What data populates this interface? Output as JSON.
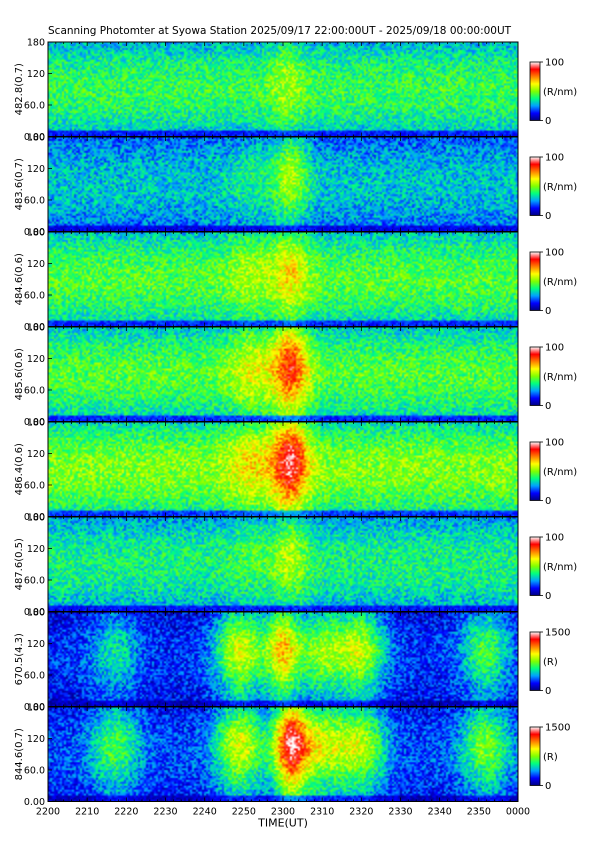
{
  "title": "Scanning Photomter at Syowa Station 2025/09/17 22:00:00UT - 2025/09/18 00:00:00UT",
  "colors": {
    "background": "#ffffff",
    "colormap": [
      "#000080",
      "#0000ff",
      "#00a0ff",
      "#00ff80",
      "#80ff00",
      "#ffff00",
      "#ff8000",
      "#ff0000",
      "#ffffff"
    ]
  },
  "chart_data": {
    "type": "heatmap",
    "xlabel": "TIME(UT)",
    "x_ticks": [
      "2200",
      "2210",
      "2220",
      "2230",
      "2240",
      "2250",
      "2300",
      "2310",
      "2320",
      "2330",
      "2340",
      "2350",
      "0000"
    ],
    "xlim_minutes": [
      0,
      120
    ],
    "y_ticks": [
      "0.00",
      "60.0",
      "120",
      "180"
    ],
    "ylim": [
      0,
      180
    ],
    "panels": [
      {
        "ylabel": "482.8(0.7)",
        "cbar_label": "(R/nm)",
        "cbar_ticks": [
          "0",
          "100"
        ],
        "clim": [
          0,
          100
        ],
        "base_level": 0.42,
        "bright_events": [
          {
            "time_min": 61,
            "peak": 0.55
          }
        ]
      },
      {
        "ylabel": "483.6(0.7)",
        "cbar_label": "(R/nm)",
        "cbar_ticks": [
          "0",
          "100"
        ],
        "clim": [
          0,
          100
        ],
        "base_level": 0.3,
        "bright_events": [
          {
            "time_min": 52,
            "peak": 0.38
          },
          {
            "time_min": 62,
            "peak": 0.55
          }
        ]
      },
      {
        "ylabel": "484.6(0.6)",
        "cbar_label": "(R/nm)",
        "cbar_ticks": [
          "0",
          "100"
        ],
        "clim": [
          0,
          100
        ],
        "base_level": 0.45,
        "bright_events": [
          {
            "time_min": 52,
            "peak": 0.55
          },
          {
            "time_min": 62,
            "peak": 0.65
          }
        ]
      },
      {
        "ylabel": "485.6(0.6)",
        "cbar_label": "(R/nm)",
        "cbar_ticks": [
          "0",
          "100"
        ],
        "clim": [
          0,
          100
        ],
        "base_level": 0.45,
        "bright_events": [
          {
            "time_min": 52,
            "peak": 0.6
          },
          {
            "time_min": 62,
            "peak": 0.85
          }
        ]
      },
      {
        "ylabel": "486.4(0.6)",
        "cbar_label": "(R/nm)",
        "cbar_ticks": [
          "0",
          "100"
        ],
        "clim": [
          0,
          100
        ],
        "base_level": 0.5,
        "bright_events": [
          {
            "time_min": 52,
            "peak": 0.65
          },
          {
            "time_min": 62,
            "peak": 0.95
          }
        ]
      },
      {
        "ylabel": "487.6(0.5)",
        "cbar_label": "(R/nm)",
        "cbar_ticks": [
          "0",
          "100"
        ],
        "clim": [
          0,
          100
        ],
        "base_level": 0.38,
        "bright_events": [
          {
            "time_min": 52,
            "peak": 0.45
          },
          {
            "time_min": 62,
            "peak": 0.55
          }
        ]
      },
      {
        "ylabel": "670.5(4.3)",
        "cbar_label": "(R)",
        "cbar_ticks": [
          "0",
          "1500"
        ],
        "clim": [
          0,
          1500
        ],
        "base_level": 0.15,
        "bright_events": [
          {
            "time_min": 17,
            "peak": 0.35
          },
          {
            "time_min": 49,
            "peak": 0.6
          },
          {
            "time_min": 60,
            "peak": 0.65
          },
          {
            "time_min": 70,
            "peak": 0.5
          },
          {
            "time_min": 80,
            "peak": 0.55
          },
          {
            "time_min": 112,
            "peak": 0.45
          }
        ]
      },
      {
        "ylabel": "844.6(0.7)",
        "cbar_label": "(R)",
        "cbar_ticks": [
          "0",
          "1500"
        ],
        "clim": [
          0,
          1500
        ],
        "base_level": 0.18,
        "bright_events": [
          {
            "time_min": 17,
            "peak": 0.45
          },
          {
            "time_min": 49,
            "peak": 0.6
          },
          {
            "time_min": 62,
            "peak": 0.9
          },
          {
            "time_min": 70,
            "peak": 0.55
          },
          {
            "time_min": 80,
            "peak": 0.55
          },
          {
            "time_min": 112,
            "peak": 0.5
          }
        ]
      }
    ]
  }
}
